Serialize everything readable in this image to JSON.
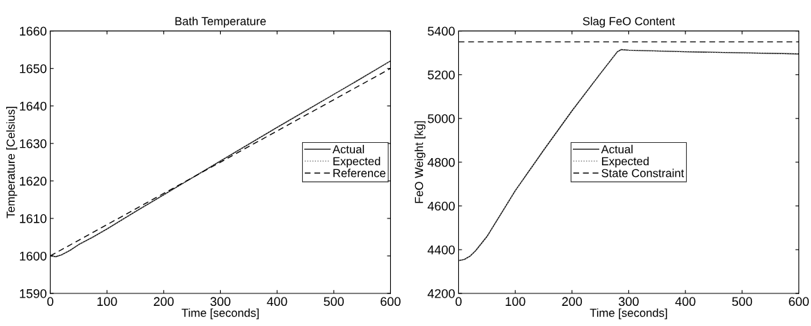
{
  "chart_data": [
    {
      "type": "line",
      "title": "Bath Temperature",
      "xlabel": "Time [seconds]",
      "ylabel": "Temperature [Celsius]",
      "xlim": [
        0,
        600
      ],
      "xticks": [
        0,
        100,
        200,
        300,
        400,
        500,
        600
      ],
      "ylim": [
        1590,
        1660
      ],
      "yticks": [
        1590,
        1600,
        1610,
        1620,
        1630,
        1640,
        1650,
        1660
      ],
      "grid": false,
      "legend": "center right",
      "series": [
        {
          "name": "Actual",
          "color": "#000000",
          "line_style": "solid",
          "x": [
            0,
            10,
            20,
            35,
            50,
            75,
            100,
            150,
            200,
            250,
            300,
            350,
            400,
            450,
            500,
            550,
            600
          ],
          "values": [
            1600,
            1599.8,
            1600.3,
            1601.5,
            1603,
            1605,
            1607.2,
            1611.8,
            1616.3,
            1620.8,
            1625.3,
            1629.8,
            1634.3,
            1638.7,
            1643.1,
            1647.5,
            1652
          ]
        },
        {
          "name": "Expected",
          "color": "#808080",
          "line_style": "dotted",
          "x": [
            0,
            10,
            20,
            35,
            50,
            75,
            100,
            150,
            200,
            250,
            300,
            350,
            400,
            450,
            500,
            550,
            600
          ],
          "values": [
            1600,
            1599.8,
            1600.3,
            1601.5,
            1603,
            1605,
            1607.2,
            1611.8,
            1616.3,
            1620.8,
            1625.3,
            1629.8,
            1634.3,
            1638.7,
            1643.1,
            1647.5,
            1652
          ]
        },
        {
          "name": "Reference",
          "color": "#000000",
          "line_style": "dashed",
          "x": [
            0,
            600
          ],
          "values": [
            1600,
            1650
          ]
        }
      ]
    },
    {
      "type": "line",
      "title": "Slag FeO Content",
      "xlabel": "Time [seconds]",
      "ylabel": "FeO Weight [kg]",
      "xlim": [
        0,
        600
      ],
      "xticks": [
        0,
        100,
        200,
        300,
        400,
        500,
        600
      ],
      "ylim": [
        4200,
        5400
      ],
      "yticks": [
        4200,
        4400,
        4600,
        4800,
        5000,
        5200,
        5400
      ],
      "grid": false,
      "legend": "center",
      "series": [
        {
          "name": "Actual",
          "color": "#000000",
          "line_style": "solid",
          "x": [
            0,
            10,
            20,
            30,
            50,
            100,
            150,
            200,
            250,
            280,
            287,
            300,
            400,
            500,
            600
          ],
          "values": [
            4350,
            4355,
            4370,
            4395,
            4460,
            4670,
            4855,
            5035,
            5205,
            5305,
            5315,
            5312,
            5305,
            5300,
            5295
          ]
        },
        {
          "name": "Expected",
          "color": "#808080",
          "line_style": "dotted",
          "x": [
            0,
            10,
            20,
            30,
            50,
            100,
            150,
            200,
            250,
            280,
            287,
            300,
            400,
            500,
            600
          ],
          "values": [
            4350,
            4355,
            4370,
            4395,
            4460,
            4670,
            4855,
            5035,
            5205,
            5305,
            5315,
            5312,
            5305,
            5300,
            5295
          ]
        },
        {
          "name": "State Constraint",
          "color": "#000000",
          "line_style": "dashed",
          "x": [
            0,
            600
          ],
          "values": [
            5350,
            5350
          ]
        }
      ]
    }
  ]
}
